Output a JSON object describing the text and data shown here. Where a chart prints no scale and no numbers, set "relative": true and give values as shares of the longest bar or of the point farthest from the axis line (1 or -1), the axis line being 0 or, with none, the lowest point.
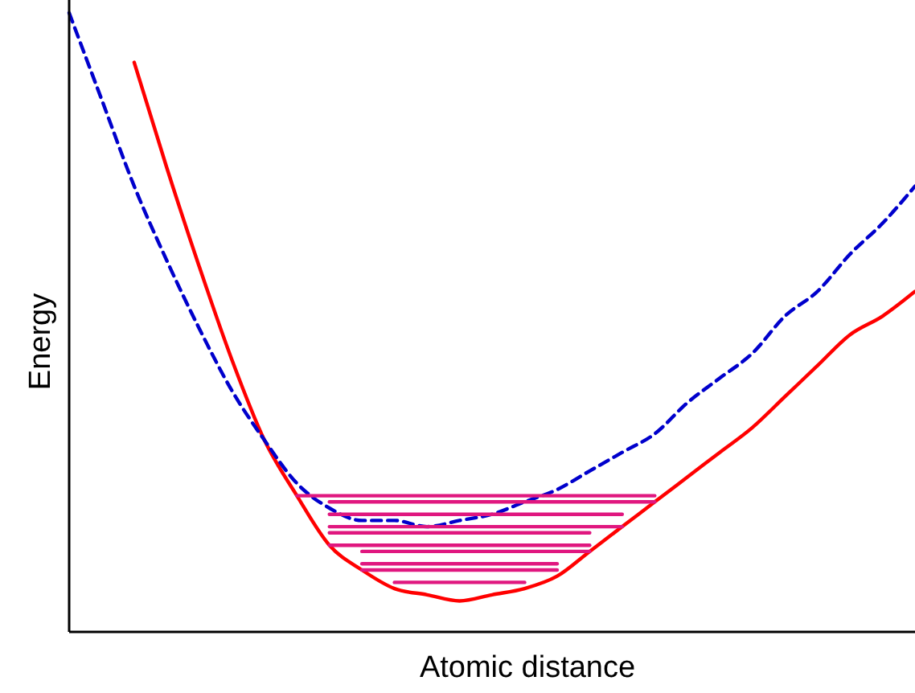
{
  "chart_data": {
    "type": "line",
    "relative": true,
    "xlabel": "Atomic distance",
    "ylabel": "Energy",
    "marker": "none",
    "categories": [
      null,
      null,
      null,
      null,
      null,
      null,
      null,
      null,
      null,
      null,
      null,
      null,
      null,
      null,
      null,
      null,
      null,
      null,
      null,
      null,
      null,
      null,
      null,
      null,
      null,
      null,
      null
    ],
    "series": [
      {
        "color": "#ff0000",
        "line_style": "solid",
        "values": [
          null,
          null,
          0.92,
          0.75,
          0.59,
          0.44,
          0.31,
          0.22,
          0.14,
          0.1,
          0.07,
          0.06,
          0.05,
          0.06,
          0.07,
          0.09,
          0.13,
          0.17,
          0.21,
          0.25,
          0.29,
          0.33,
          0.38,
          0.43,
          0.48,
          0.51,
          0.55
        ]
      },
      {
        "color": "#0000cc",
        "line_style": "dashed",
        "values": [
          1.0,
          0.86,
          0.72,
          0.6,
          0.49,
          0.39,
          0.31,
          0.24,
          0.2,
          0.18,
          0.18,
          0.17,
          0.18,
          0.19,
          0.21,
          0.23,
          0.26,
          0.29,
          0.32,
          0.37,
          0.41,
          0.45,
          0.51,
          0.55,
          0.61,
          0.66,
          0.72
        ]
      },
      {
        "color": "#e0177f",
        "line_style": "solid",
        "values": [
          null,
          null,
          null,
          null,
          null,
          null,
          null,
          0.22,
          0.22,
          0.22,
          0.22,
          0.22,
          0.22,
          0.22,
          0.22,
          0.22,
          0.22,
          0.22,
          0.22,
          null,
          null,
          null,
          null,
          null,
          null,
          null,
          null
        ]
      },
      {
        "color": "#e0177f",
        "line_style": "solid",
        "values": [
          null,
          null,
          null,
          null,
          null,
          null,
          null,
          null,
          0.21,
          0.21,
          0.21,
          0.21,
          0.21,
          0.21,
          0.21,
          0.21,
          0.21,
          0.21,
          0.21,
          null,
          null,
          null,
          null,
          null,
          null,
          null,
          null
        ]
      },
      {
        "color": "#e0177f",
        "line_style": "solid",
        "values": [
          null,
          null,
          null,
          null,
          null,
          null,
          null,
          null,
          0.19,
          0.19,
          0.19,
          0.19,
          0.19,
          0.19,
          0.19,
          0.19,
          0.19,
          0.19,
          null,
          null,
          null,
          null,
          null,
          null,
          null,
          null,
          null
        ]
      },
      {
        "color": "#e0177f",
        "line_style": "solid",
        "values": [
          null,
          null,
          null,
          null,
          null,
          null,
          null,
          null,
          0.17,
          0.17,
          0.17,
          0.17,
          0.17,
          0.17,
          0.17,
          0.17,
          0.17,
          0.17,
          null,
          null,
          null,
          null,
          null,
          null,
          null,
          null,
          null
        ]
      },
      {
        "color": "#e0177f",
        "line_style": "solid",
        "values": [
          null,
          null,
          null,
          null,
          null,
          null,
          null,
          null,
          0.16,
          0.16,
          0.16,
          0.16,
          0.16,
          0.16,
          0.16,
          0.16,
          0.16,
          null,
          null,
          null,
          null,
          null,
          null,
          null,
          null,
          null,
          null
        ]
      },
      {
        "color": "#e0177f",
        "line_style": "solid",
        "values": [
          null,
          null,
          null,
          null,
          null,
          null,
          null,
          null,
          0.14,
          0.14,
          0.14,
          0.14,
          0.14,
          0.14,
          0.14,
          0.14,
          0.14,
          null,
          null,
          null,
          null,
          null,
          null,
          null,
          null,
          null,
          null
        ]
      },
      {
        "color": "#e0177f",
        "line_style": "solid",
        "values": [
          null,
          null,
          null,
          null,
          null,
          null,
          null,
          null,
          null,
          0.13,
          0.13,
          0.13,
          0.13,
          0.13,
          0.13,
          0.13,
          0.13,
          null,
          null,
          null,
          null,
          null,
          null,
          null,
          null,
          null,
          null
        ]
      },
      {
        "color": "#e0177f",
        "line_style": "solid",
        "values": [
          null,
          null,
          null,
          null,
          null,
          null,
          null,
          null,
          null,
          0.11,
          0.11,
          0.11,
          0.11,
          0.11,
          0.11,
          0.11,
          null,
          null,
          null,
          null,
          null,
          null,
          null,
          null,
          null,
          null,
          null
        ]
      },
      {
        "color": "#e0177f",
        "line_style": "solid",
        "values": [
          null,
          null,
          null,
          null,
          null,
          null,
          null,
          null,
          null,
          0.1,
          0.1,
          0.1,
          0.1,
          0.1,
          0.1,
          0.1,
          null,
          null,
          null,
          null,
          null,
          null,
          null,
          null,
          null,
          null,
          null
        ]
      },
      {
        "color": "#e0177f",
        "line_style": "solid",
        "values": [
          null,
          null,
          null,
          null,
          null,
          null,
          null,
          null,
          null,
          null,
          0.08,
          0.08,
          0.08,
          0.08,
          0.08,
          null,
          null,
          null,
          null,
          null,
          null,
          null,
          null,
          null,
          null,
          null,
          null
        ]
      }
    ]
  }
}
